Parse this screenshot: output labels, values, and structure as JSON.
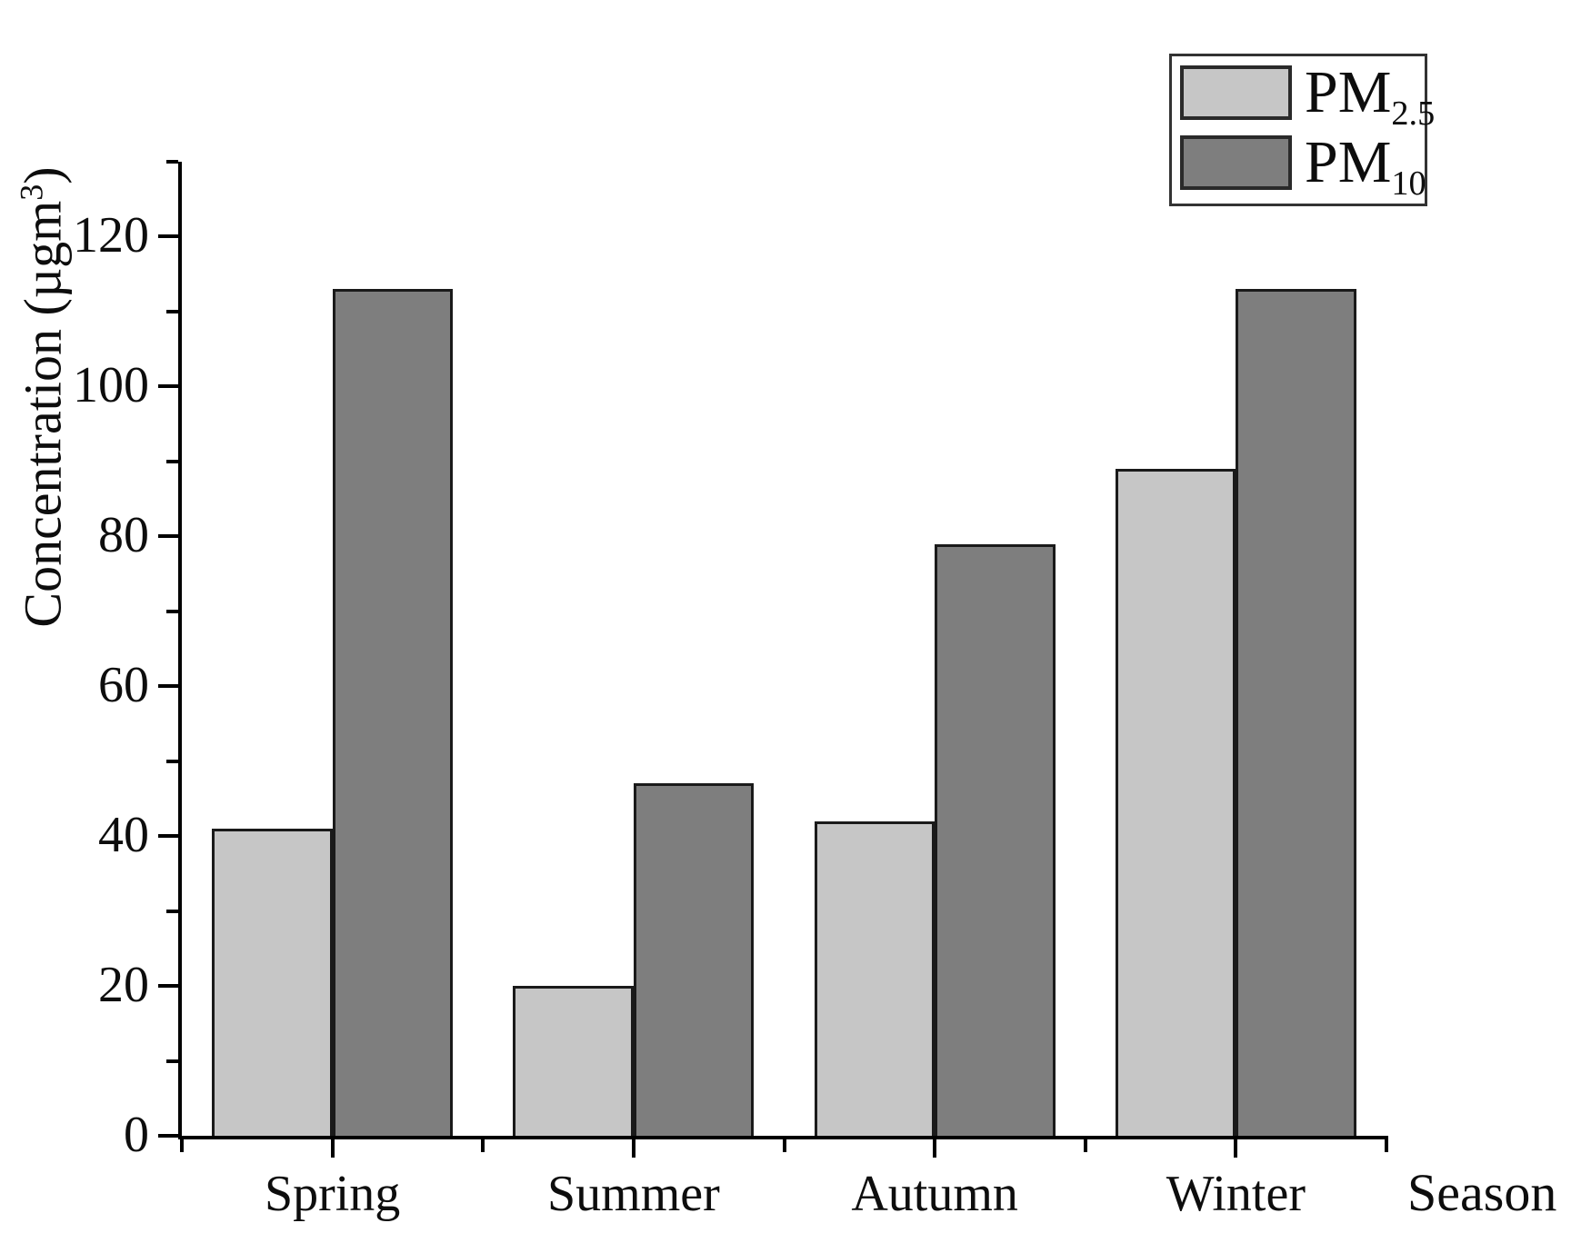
{
  "chart_data": {
    "type": "bar",
    "title": "",
    "xlabel": "Season",
    "ylabel": {
      "text": "Concentration (µgm",
      "sup": "3",
      "suffix": ")"
    },
    "categories": [
      "Spring",
      "Summer",
      "Autumn",
      "Winter"
    ],
    "series": [
      {
        "name": "PM2.5",
        "label_base": "PM",
        "label_sub": "2.5",
        "color": "#c6c6c6",
        "values": [
          41,
          20,
          42,
          89
        ]
      },
      {
        "name": "PM10",
        "label_base": "PM",
        "label_sub": "10",
        "color": "#7e7e7e",
        "values": [
          113,
          47,
          79,
          113
        ]
      }
    ],
    "ylim": [
      0,
      130
    ],
    "yticks_major": [
      0,
      20,
      40,
      60,
      80,
      100,
      120
    ],
    "yticks_minor": [
      10,
      30,
      50,
      70,
      90,
      110,
      130
    ],
    "legend_position": "top-right",
    "grid": false,
    "colors": {
      "axis": "#000000",
      "bar_border": "#1a1a1a",
      "text": "#0d0d0d",
      "legend_border": "#333333",
      "background": "#ffffff"
    }
  }
}
